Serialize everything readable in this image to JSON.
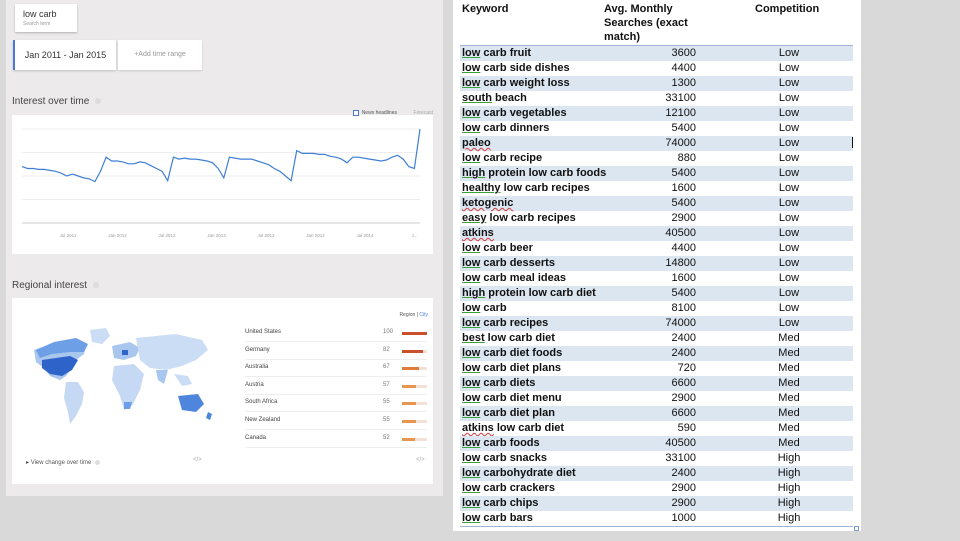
{
  "search": {
    "term": "low carb",
    "sublabel": "Search term"
  },
  "date_range": {
    "value": "Jan 2011 - Jan 2015",
    "add_label": "+Add time range"
  },
  "interest": {
    "title": "Interest over time",
    "news_label": "News headlines",
    "forecast_label": "Forecast",
    "x_ticks": [
      "Jul 2011",
      "Jan 2012",
      "Jul 2012",
      "Jan 2013",
      "Jul 2013",
      "Jan 2014",
      "Jul 2014",
      "J..."
    ],
    "series": [
      60,
      58,
      58,
      57,
      57,
      56,
      55,
      53,
      50,
      52,
      50,
      48,
      47,
      44,
      55,
      70,
      66,
      66,
      65,
      63,
      63,
      65,
      64,
      61,
      58,
      55,
      45,
      70,
      68,
      69,
      68,
      68,
      67,
      66,
      64,
      58,
      48,
      70,
      69,
      68,
      68,
      68,
      66,
      64,
      62,
      58,
      55,
      50,
      45,
      77,
      74,
      74,
      74,
      73,
      73,
      71,
      70,
      68,
      64,
      70,
      70,
      69,
      68,
      67,
      66,
      67,
      70,
      72,
      68,
      60,
      58,
      100
    ]
  },
  "regional": {
    "title": "Regional interest",
    "switch_region": "Region",
    "switch_city": "City",
    "view_change": "View change over time",
    "embed": "</>",
    "rows": [
      {
        "name": "United States",
        "value": "100",
        "pct": 1.0,
        "color": "#c9502b"
      },
      {
        "name": "Germany",
        "value": "82",
        "pct": 0.82,
        "color": "#c9502b"
      },
      {
        "name": "Australia",
        "value": "67",
        "pct": 0.67,
        "color": "#e07a3d"
      },
      {
        "name": "Austria",
        "value": "57",
        "pct": 0.57,
        "color": "#e8954f"
      },
      {
        "name": "South Africa",
        "value": "55",
        "pct": 0.55,
        "color": "#e8954f"
      },
      {
        "name": "New Zealand",
        "value": "55",
        "pct": 0.55,
        "color": "#e8954f"
      },
      {
        "name": "Canada",
        "value": "52",
        "pct": 0.52,
        "color": "#e8954f"
      }
    ]
  },
  "sheet": {
    "headers": {
      "keyword": "Keyword",
      "avg": "Avg. Monthly Searches (exact match)",
      "competition": "Competition"
    },
    "rows": [
      {
        "first": "low",
        "rest": " carb fruit",
        "searches": "3600",
        "competition": "Low"
      },
      {
        "first": "low",
        "rest": " carb side dishes",
        "searches": "4400",
        "competition": "Low"
      },
      {
        "first": "low",
        "rest": " carb weight loss",
        "searches": "1300",
        "competition": "Low"
      },
      {
        "first": "south",
        "rest": " beach",
        "searches": "33100",
        "competition": "Low"
      },
      {
        "first": "low",
        "rest": " carb vegetables",
        "searches": "12100",
        "competition": "Low"
      },
      {
        "first": "low",
        "rest": " carb dinners",
        "searches": "5400",
        "competition": "Low"
      },
      {
        "first": "paleo",
        "rest": "",
        "searches": "74000",
        "competition": "Low",
        "red": true
      },
      {
        "first": "low",
        "rest": " carb recipe",
        "searches": "880",
        "competition": "Low"
      },
      {
        "first": "high",
        "rest": " protein low carb foods",
        "searches": "5400",
        "competition": "Low"
      },
      {
        "first": "healthy",
        "rest": " low carb recipes",
        "searches": "1600",
        "competition": "Low"
      },
      {
        "first": "ketogenic",
        "rest": "",
        "searches": "5400",
        "competition": "Low",
        "red": true
      },
      {
        "first": "easy",
        "rest": " low carb recipes",
        "searches": "2900",
        "competition": "Low"
      },
      {
        "first": "atkins",
        "rest": "",
        "searches": "40500",
        "competition": "Low",
        "red": true
      },
      {
        "first": "low",
        "rest": " carb beer",
        "searches": "4400",
        "competition": "Low"
      },
      {
        "first": "low",
        "rest": " carb desserts",
        "searches": "14800",
        "competition": "Low"
      },
      {
        "first": "low",
        "rest": " carb meal ideas",
        "searches": "1600",
        "competition": "Low"
      },
      {
        "first": "high",
        "rest": " protein low carb diet",
        "searches": "5400",
        "competition": "Low"
      },
      {
        "first": "low",
        "rest": " carb",
        "searches": "8100",
        "competition": "Low"
      },
      {
        "first": "low",
        "rest": " carb recipes",
        "searches": "74000",
        "competition": "Low"
      },
      {
        "first": "best",
        "rest": " low carb diet",
        "searches": "2400",
        "competition": "Med"
      },
      {
        "first": "low",
        "rest": " carb diet foods",
        "searches": "2400",
        "competition": "Med"
      },
      {
        "first": "low",
        "rest": " carb diet plans",
        "searches": "720",
        "competition": "Med"
      },
      {
        "first": "low",
        "rest": " carb diets",
        "searches": "6600",
        "competition": "Med"
      },
      {
        "first": "low",
        "rest": " carb diet menu",
        "searches": "2900",
        "competition": "Med"
      },
      {
        "first": "low",
        "rest": " carb diet plan",
        "searches": "6600",
        "competition": "Med"
      },
      {
        "first": "atkins",
        "rest": " low carb diet",
        "searches": "590",
        "competition": "Med",
        "red": true
      },
      {
        "first": "low",
        "rest": " carb foods",
        "searches": "40500",
        "competition": "Med"
      },
      {
        "first": "low",
        "rest": " carb snacks",
        "searches": "33100",
        "competition": "High"
      },
      {
        "first": "low",
        "rest": " carbohydrate diet",
        "searches": "2400",
        "competition": "High"
      },
      {
        "first": "low",
        "rest": " carb crackers",
        "searches": "2900",
        "competition": "High"
      },
      {
        "first": "low",
        "rest": " carb chips",
        "searches": "2900",
        "competition": "High"
      },
      {
        "first": "low",
        "rest": " carb bars",
        "searches": "1000",
        "competition": "High"
      }
    ]
  }
}
